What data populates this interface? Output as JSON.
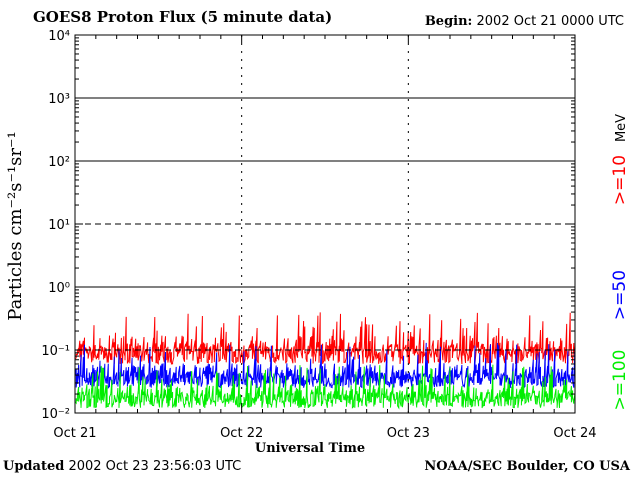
{
  "header": {
    "title": "GOES8 Proton Flux (5 minute data)",
    "begin_label": "Begin:",
    "begin_value": "2002 Oct 21 0000 UTC"
  },
  "footer": {
    "updated_label": "Updated",
    "updated_value": "2002 Oct 23 23:56:03 UTC",
    "credit": "NOAA/SEC Boulder, CO USA"
  },
  "colors": {
    "ge10": "#ff0000",
    "ge50": "#0000ff",
    "ge100": "#00ee00",
    "axis": "#000000"
  },
  "chart_data": {
    "type": "line",
    "title": "GOES8 Proton Flux (5 minute data)",
    "xlabel": "Universal Time",
    "ylabel": "Particles cm⁻²s⁻¹sr⁻¹",
    "yscale": "log",
    "ylim": [
      0.01,
      10000
    ],
    "ytick_labels": [
      "10⁻²",
      "10⁻¹",
      "10⁰",
      "10¹",
      "10²",
      "10³",
      "10⁴"
    ],
    "xtick_labels": [
      "Oct 21",
      "Oct 22",
      "Oct 23",
      "Oct 24"
    ],
    "xlim": [
      "2002-10-21",
      "2002-10-24"
    ],
    "legend_placement": "right",
    "legend_unit": "MeV",
    "series": [
      {
        "name": ">=10",
        "color": "#ff0000",
        "typical_range": [
          0.06,
          0.4
        ]
      },
      {
        "name": ">=50",
        "color": "#0000ff",
        "typical_range": [
          0.025,
          0.13
        ]
      },
      {
        "name": ">=100",
        "color": "#00ee00",
        "typical_range": [
          0.012,
          0.06
        ]
      }
    ]
  }
}
